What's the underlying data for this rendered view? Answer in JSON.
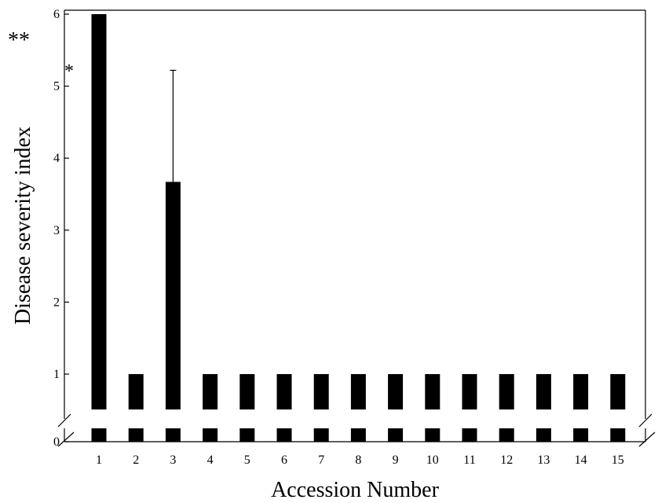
{
  "chart_data": {
    "type": "bar",
    "xlabel": "Accession Number",
    "ylabel": "Disease severity index",
    "categories": [
      "1",
      "2",
      "3",
      "4",
      "5",
      "6",
      "7",
      "8",
      "9",
      "10",
      "11",
      "12",
      "13",
      "14",
      "15"
    ],
    "values": [
      6,
      1,
      3.67,
      1,
      1,
      1,
      1,
      1,
      1,
      1,
      1,
      1,
      1,
      1,
      1
    ],
    "error_bars": [
      null,
      null,
      1.55,
      null,
      null,
      null,
      null,
      null,
      null,
      null,
      null,
      null,
      null,
      null,
      null
    ],
    "ylim": [
      0,
      6
    ],
    "y_ticks": [
      "0",
      "1",
      "2",
      "3",
      "4",
      "5",
      "6"
    ],
    "axis_break": [
      0,
      0.5
    ],
    "bar_color": "#000000",
    "significance": [
      {
        "label": "**",
        "category": "1"
      },
      {
        "label": "*",
        "category": "3"
      }
    ],
    "grid": false,
    "legend": "none"
  }
}
